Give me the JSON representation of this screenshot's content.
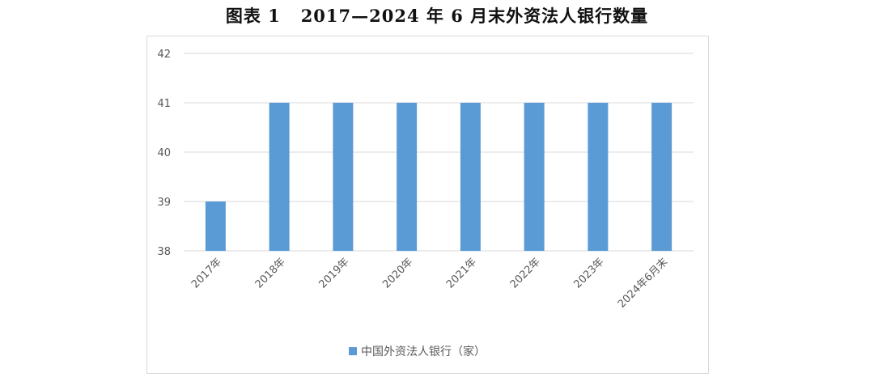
{
  "figure_title": "图表 1   2017—2024 年 6 月末外资法人银行数量",
  "chart_data": {
    "type": "bar",
    "categories": [
      "2017年",
      "2018年",
      "2019年",
      "2020年",
      "2021年",
      "2022年",
      "2023年",
      "2024年6月末"
    ],
    "series": [
      {
        "name": "中国外资法人银行（家）",
        "values": [
          39,
          41,
          41,
          41,
          41,
          41,
          41,
          41
        ],
        "color": "#5b9bd5"
      }
    ],
    "ylim": [
      38,
      42
    ],
    "yticks": [
      "38",
      "39",
      "40",
      "41",
      "42"
    ],
    "grid": true,
    "legend_position": "bottom",
    "colors": {
      "bar": "#5b9bd5",
      "grid": "#d9d9d9",
      "tick_text": "#595959"
    }
  }
}
